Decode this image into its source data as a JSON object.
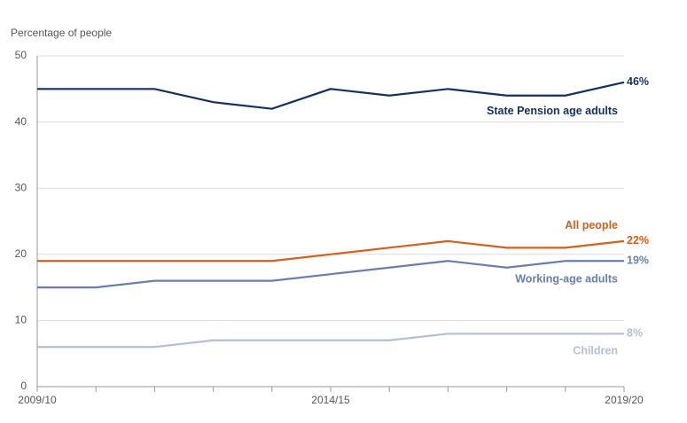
{
  "chart_data": {
    "type": "line",
    "y_label": "Percentage of people",
    "categories": [
      "2009/10",
      null,
      null,
      null,
      null,
      "2014/15",
      null,
      null,
      null,
      null,
      "2019/20"
    ],
    "ylim": [
      0,
      50
    ],
    "yticks": [
      0,
      10,
      20,
      30,
      40,
      50
    ],
    "grid": true,
    "series": [
      {
        "name": "State Pension age adults",
        "color": "#13315c",
        "values": [
          45,
          45,
          45,
          43,
          42,
          45,
          44,
          45,
          44,
          44,
          46
        ],
        "value_labels": [
          null,
          null,
          null,
          null,
          null,
          null,
          null,
          null,
          null,
          null,
          "46%"
        ]
      },
      {
        "name": "All people",
        "color": "#d4601c",
        "values": [
          19,
          19,
          19,
          19,
          19,
          20,
          21,
          22,
          21,
          21,
          22
        ],
        "value_labels": [
          null,
          null,
          null,
          null,
          null,
          null,
          null,
          null,
          null,
          null,
          "22%"
        ]
      },
      {
        "name": "Working-age adults",
        "color": "#6a7fa8",
        "values": [
          15,
          15,
          16,
          16,
          16,
          17,
          18,
          19,
          18,
          19,
          19
        ],
        "value_labels": [
          null,
          null,
          null,
          null,
          null,
          null,
          null,
          null,
          null,
          null,
          "19%"
        ]
      },
      {
        "name": "Children",
        "color": "#b4bfd6",
        "values": [
          6,
          6,
          6,
          7,
          7,
          7,
          7,
          8,
          8,
          8,
          8
        ],
        "value_labels": [
          null,
          null,
          null,
          null,
          null,
          null,
          null,
          null,
          null,
          null,
          "8%"
        ]
      }
    ]
  }
}
